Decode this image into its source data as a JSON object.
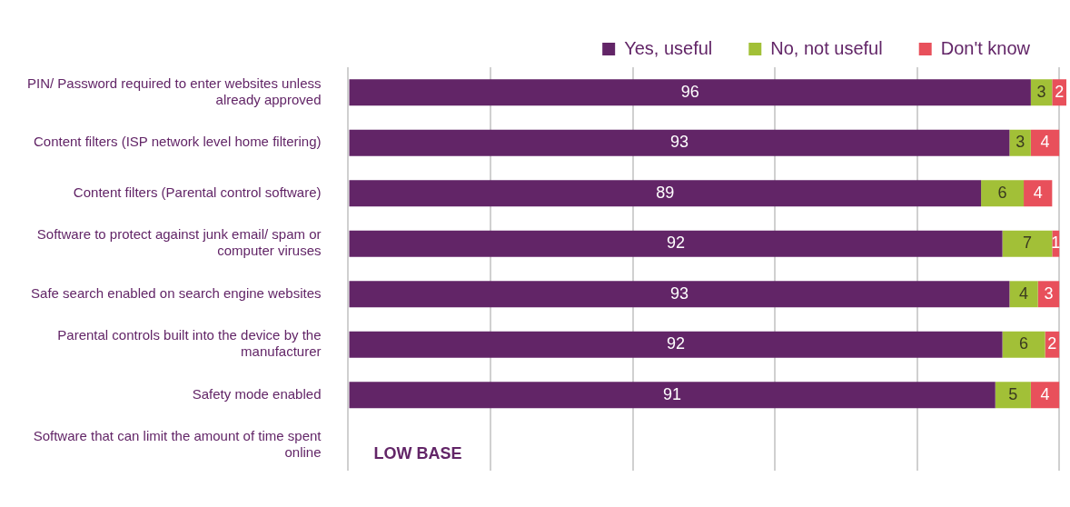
{
  "chart_data": {
    "type": "bar",
    "orientation": "horizontal",
    "stacked": true,
    "categories": [
      "PIN/ Password required to enter websites unless already approved",
      "Content filters (ISP network level home filtering)",
      "Content filters (Parental control software)",
      "Software to protect against junk email/ spam or computer viruses",
      "Safe search enabled on search engine websites",
      "Parental controls built into the device by the manufacturer",
      "Safety mode enabled",
      "Software that can limit the amount of time spent online"
    ],
    "series": [
      {
        "name": "Yes, useful",
        "color": "#622567",
        "values": [
          96,
          93,
          89,
          92,
          93,
          92,
          91,
          null
        ]
      },
      {
        "name": "No, not useful",
        "color": "#a2c037",
        "values": [
          3,
          3,
          6,
          7,
          4,
          6,
          5,
          null
        ]
      },
      {
        "name": "Don't know",
        "color": "#e8505b",
        "values": [
          2,
          4,
          4,
          1,
          3,
          2,
          4,
          null
        ]
      }
    ],
    "xlim": [
      0,
      101
    ],
    "xticks": [
      {
        "value": 0,
        "label": null
      },
      {
        "value": 20,
        "label": null
      },
      {
        "value": 40,
        "label": null
      },
      {
        "value": 60,
        "label": null
      },
      {
        "value": 80,
        "label": null
      },
      {
        "value": 100,
        "label": null
      }
    ],
    "tick_labels": "y",
    "grid": "x",
    "legend": "top",
    "data_labels": true,
    "annotations": [
      "LOW BASE"
    ]
  }
}
